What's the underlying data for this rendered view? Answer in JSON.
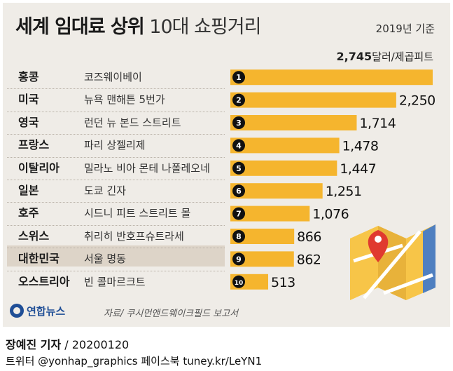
{
  "header": {
    "title_bold": "세계 임대료 상위",
    "title_light": "10대 쇼핑거리",
    "basis": "2019년 기준"
  },
  "unit": {
    "top_value": "2,745",
    "label": "달러/제곱피트"
  },
  "chart_data": {
    "type": "bar",
    "orientation": "horizontal",
    "ylabel": "",
    "xlabel": "",
    "unit": "달러/제곱피트",
    "categories": [
      "홍콩",
      "미국",
      "영국",
      "프랑스",
      "이탈리아",
      "일본",
      "호주",
      "스위스",
      "대한민국",
      "오스트리아"
    ],
    "places": [
      "코즈웨이베이",
      "뉴욕 맨해튼 5번가",
      "런던 뉴 본드 스트리트",
      "파리 상젤리제",
      "밀라노 비아 몬테 나폴레오네",
      "도쿄 긴자",
      "시드니 피트 스트리트 몰",
      "취리히 반호프슈트라세",
      "서울 명동",
      "빈 콜마르크트"
    ],
    "ranks": [
      "1",
      "2",
      "3",
      "4",
      "5",
      "6",
      "7",
      "8",
      "9",
      "10"
    ],
    "values": [
      2745,
      2250,
      1714,
      1478,
      1447,
      1251,
      1076,
      866,
      862,
      513
    ],
    "value_labels": [
      "",
      "2,250",
      "1,714",
      "1,478",
      "1,447",
      "1,251",
      "1,076",
      "866",
      "862",
      "513"
    ],
    "highlight_category": "대한민국",
    "xlim": [
      0,
      2745
    ],
    "grid": false,
    "legend": "none",
    "bar_color": "#f5b52e",
    "highlight_row_color": "#ddd4c8",
    "background_color": "#efece7"
  },
  "footer": {
    "logo": "연합뉴스",
    "source": "자료/ 쿠시먼앤드웨이크필드 보고서",
    "reporter": "장예진 기자",
    "date": "/ 20200120",
    "social": "트위터 @yonhap_graphics  페이스북 tuney.kr/LeYN1"
  },
  "map_icon": "map-pin-icon"
}
